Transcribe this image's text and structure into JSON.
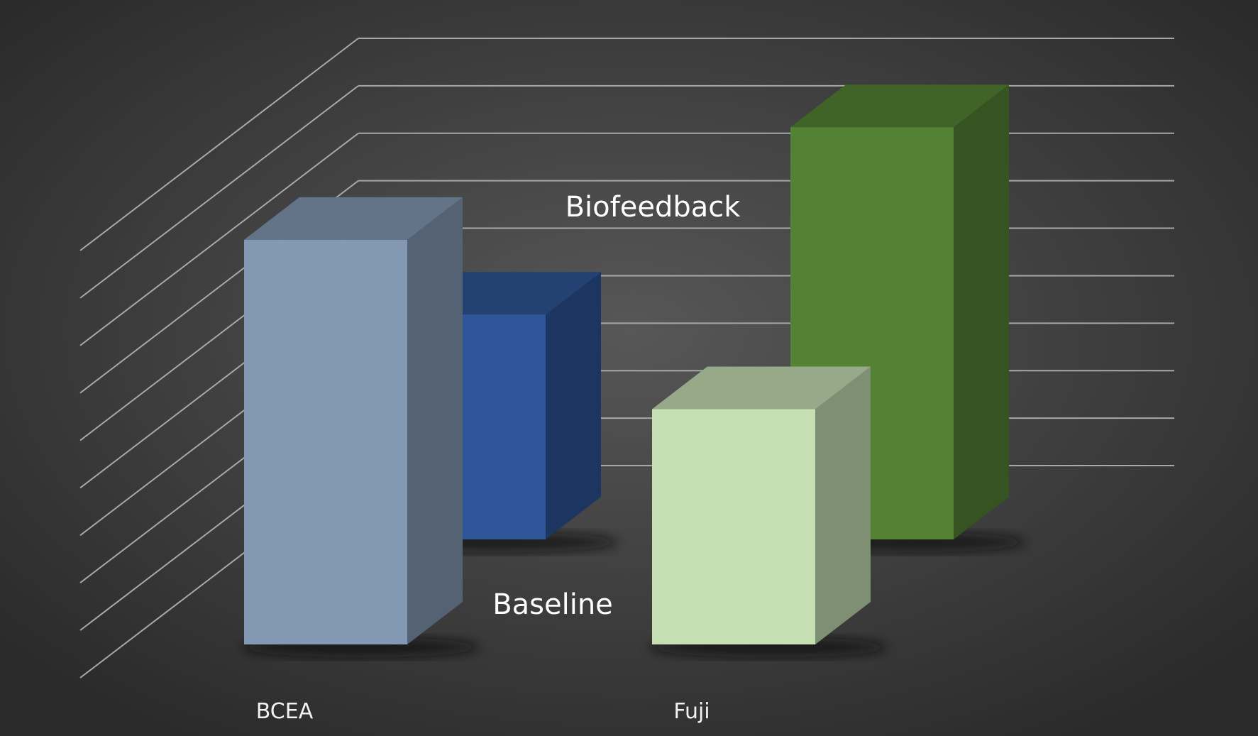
{
  "chart_data": {
    "type": "bar",
    "subtype": "3d-clustered-column",
    "title": "",
    "xlabel": "",
    "ylabel": "",
    "categories": [
      "BCEA",
      "Fuji"
    ],
    "series": [
      {
        "name": "Baseline",
        "values": [
          8.6,
          5.0
        ],
        "colors": [
          "#8399b3",
          "#c6e0b4"
        ]
      },
      {
        "name": "Biofeedback",
        "values": [
          4.8,
          8.8
        ],
        "colors": [
          "#2e5597",
          "#548235"
        ]
      }
    ],
    "ylim": [
      0,
      9
    ],
    "y_ticks": [
      0,
      1,
      2,
      3,
      4,
      5,
      6,
      7,
      8,
      9
    ],
    "grid": true,
    "tick_labels_visible": false,
    "legend": "series labels placed on chart depth axis",
    "background": "#3a3a3a",
    "grid_color": "#a8a8a8",
    "label_color": "#ffffff"
  }
}
